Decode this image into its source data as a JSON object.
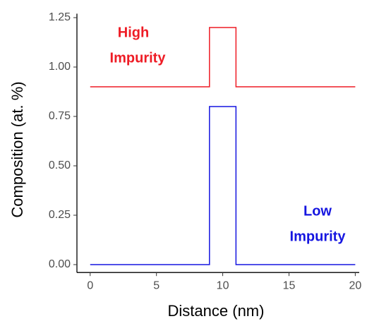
{
  "chart_data": {
    "type": "line",
    "x_label": "Distance (nm)",
    "y_label": "Composition (at. %)",
    "x": [
      0,
      9,
      9,
      11,
      11,
      20
    ],
    "series": [
      {
        "name": "High Impurity",
        "color": "#ee1c25",
        "values": [
          0.9,
          0.9,
          1.2,
          1.2,
          0.9,
          0.9
        ]
      },
      {
        "name": "Low Impurity",
        "color": "#1515e0",
        "values": [
          0,
          0,
          0.8,
          0.8,
          0,
          0
        ]
      }
    ],
    "annotations": [
      {
        "lines": [
          "High",
          "Impurity"
        ],
        "color": "#ee1c25"
      },
      {
        "lines": [
          "Low",
          "Impurity"
        ],
        "color": "#1515e0"
      }
    ],
    "xlim": [
      -1,
      20.3
    ],
    "ylim": [
      -0.04,
      1.27
    ],
    "xticks": [
      0,
      5,
      10,
      15,
      20
    ],
    "yticks": [
      {
        "value": 0,
        "label": "0.00"
      },
      {
        "value": 0.25,
        "label": "0.25"
      },
      {
        "value": 0.5,
        "label": "0.50"
      },
      {
        "value": 0.75,
        "label": "0.75"
      },
      {
        "value": 1,
        "label": "1.00"
      },
      {
        "value": 1.25,
        "label": "1.25"
      }
    ],
    "grid": false
  }
}
